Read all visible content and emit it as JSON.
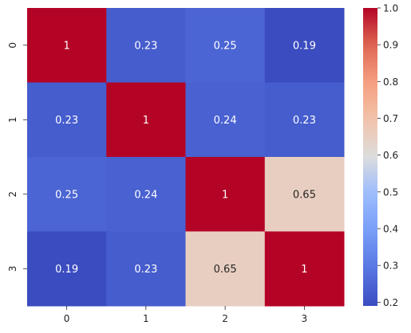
{
  "chart_data": {
    "type": "heatmap",
    "x_labels": [
      "0",
      "1",
      "2",
      "3"
    ],
    "y_labels": [
      "0",
      "1",
      "2",
      "3"
    ],
    "values": [
      [
        1,
        0.23,
        0.25,
        0.19
      ],
      [
        0.23,
        1,
        0.24,
        0.23
      ],
      [
        0.25,
        0.24,
        1,
        0.65
      ],
      [
        0.19,
        0.23,
        0.65,
        1
      ]
    ],
    "annotations": [
      [
        "1",
        "0.23",
        "0.25",
        "0.19"
      ],
      [
        "0.23",
        "1",
        "0.24",
        "0.23"
      ],
      [
        "0.25",
        "0.24",
        "1",
        "0.65"
      ],
      [
        "0.19",
        "0.23",
        "0.65",
        "1"
      ]
    ],
    "colormap": "coolwarm",
    "vmin": 0.19,
    "vmax": 1.0,
    "colorbar_ticks": [
      0.2,
      0.3,
      0.4,
      0.5,
      0.6,
      0.7,
      0.8,
      0.9,
      1.0
    ],
    "colorbar_tick_labels": [
      "0.2",
      "0.3",
      "0.4",
      "0.5",
      "0.6",
      "0.7",
      "0.8",
      "0.9",
      "1.0"
    ],
    "title": "",
    "xlabel": "",
    "ylabel": ""
  }
}
